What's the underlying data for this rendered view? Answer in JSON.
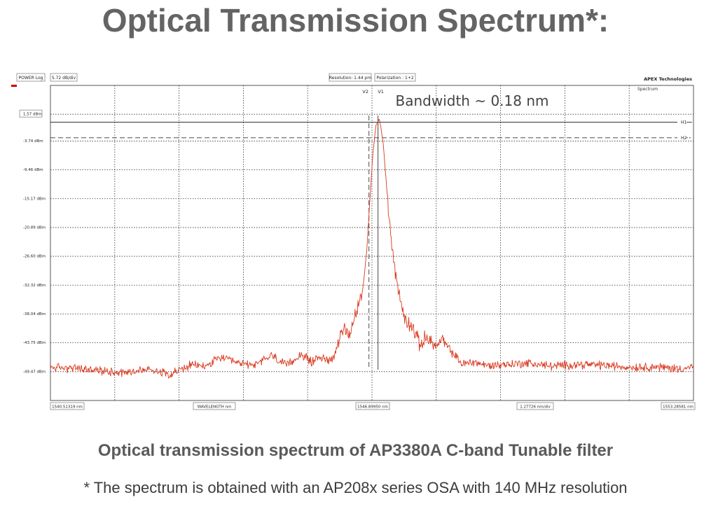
{
  "title": "Optical Transmission Spectrum*:",
  "caption": "Optical transmission spectrum of AP3380A C-band Tunable filter",
  "footnote": "* The spectrum is obtained with an AP208x series OSA with 140 MHz resolution",
  "instrument": {
    "power_mode": "POWER Log",
    "scale": "5.72 dB/div",
    "resolution": "Resolution: 1.44 pm",
    "polarization": "Polarization : 1+2",
    "brand": "APEX Technologies",
    "mode": "Spectrum",
    "x_start": "1540.51319 nm",
    "x_axis_label": "WAVELENGTH nm",
    "x_center": "1546.89950 nm",
    "x_span": "1.27726 nm/div",
    "x_end": "1553.28581 nm"
  },
  "annotation": "Bandwidth ~ 0.18 nm",
  "colors": {
    "trace": "#d9391f",
    "marker": "#cc0000",
    "grid": "#333333"
  },
  "chart_data": {
    "type": "line",
    "title": "",
    "xlabel": "WAVELENGTH nm",
    "ylabel": "",
    "y_unit": "dBm",
    "yticks": [
      1.57,
      -3.74,
      -9.46,
      -15.17,
      -20.89,
      -26.6,
      -32.32,
      -38.04,
      -43.75,
      -49.47
    ],
    "ytick_labels": [
      "1.57 dBm",
      "-3.74 dBm",
      "-9.46 dBm",
      "-15.17 dBm",
      "-20.89 dBm",
      "-26.60 dBm",
      "-32.32 dBm",
      "-38.04 dBm",
      "-43.75 dBm",
      "-49.47 dBm"
    ],
    "xlim": [
      1540.51319,
      1553.28581
    ],
    "ylim": [
      -55.19,
      7.29
    ],
    "grid": true,
    "markers": [
      {
        "name": "H1",
        "type": "horizontal",
        "y": 0.0
      },
      {
        "name": "H2",
        "type": "horizontal",
        "y": -3.1
      },
      {
        "name": "V2",
        "type": "vertical",
        "x": 1546.84
      },
      {
        "name": "V1",
        "type": "vertical",
        "x": 1547.02
      }
    ],
    "series": [
      {
        "color": "#d9391f",
        "x": [
          1540.51,
          1541.0,
          1541.5,
          1542.0,
          1542.5,
          1542.9,
          1543.3,
          1543.6,
          1543.9,
          1544.2,
          1544.6,
          1544.9,
          1545.2,
          1545.5,
          1545.7,
          1545.85,
          1546.0,
          1546.15,
          1546.3,
          1546.45,
          1546.55,
          1546.65,
          1546.72,
          1546.8,
          1546.86,
          1546.92,
          1546.98,
          1547.05,
          1547.12,
          1547.2,
          1547.3,
          1547.42,
          1547.55,
          1547.7,
          1547.85,
          1548.0,
          1548.15,
          1548.3,
          1548.5,
          1548.7,
          1548.9,
          1549.2,
          1549.6,
          1550.0,
          1550.5,
          1551.0,
          1551.5,
          1552.0,
          1552.5,
          1553.0,
          1553.29
        ],
        "y": [
          -48.6,
          -48.8,
          -49.3,
          -49.6,
          -49.0,
          -49.9,
          -48.2,
          -48.4,
          -46.6,
          -47.8,
          -48.1,
          -46.2,
          -48.3,
          -46.0,
          -47.6,
          -46.5,
          -47.2,
          -46.5,
          -40.8,
          -43.0,
          -38.5,
          -36.2,
          -33.0,
          -25.0,
          -15.0,
          -6.0,
          -0.5,
          0.6,
          -4.0,
          -14.0,
          -25.0,
          -33.5,
          -39.0,
          -40.5,
          -44.2,
          -42.5,
          -44.5,
          -43.3,
          -45.8,
          -48.0,
          -47.5,
          -48.3,
          -48.0,
          -47.8,
          -48.4,
          -48.0,
          -48.2,
          -48.6,
          -48.5,
          -48.9,
          -48.5
        ]
      }
    ]
  }
}
